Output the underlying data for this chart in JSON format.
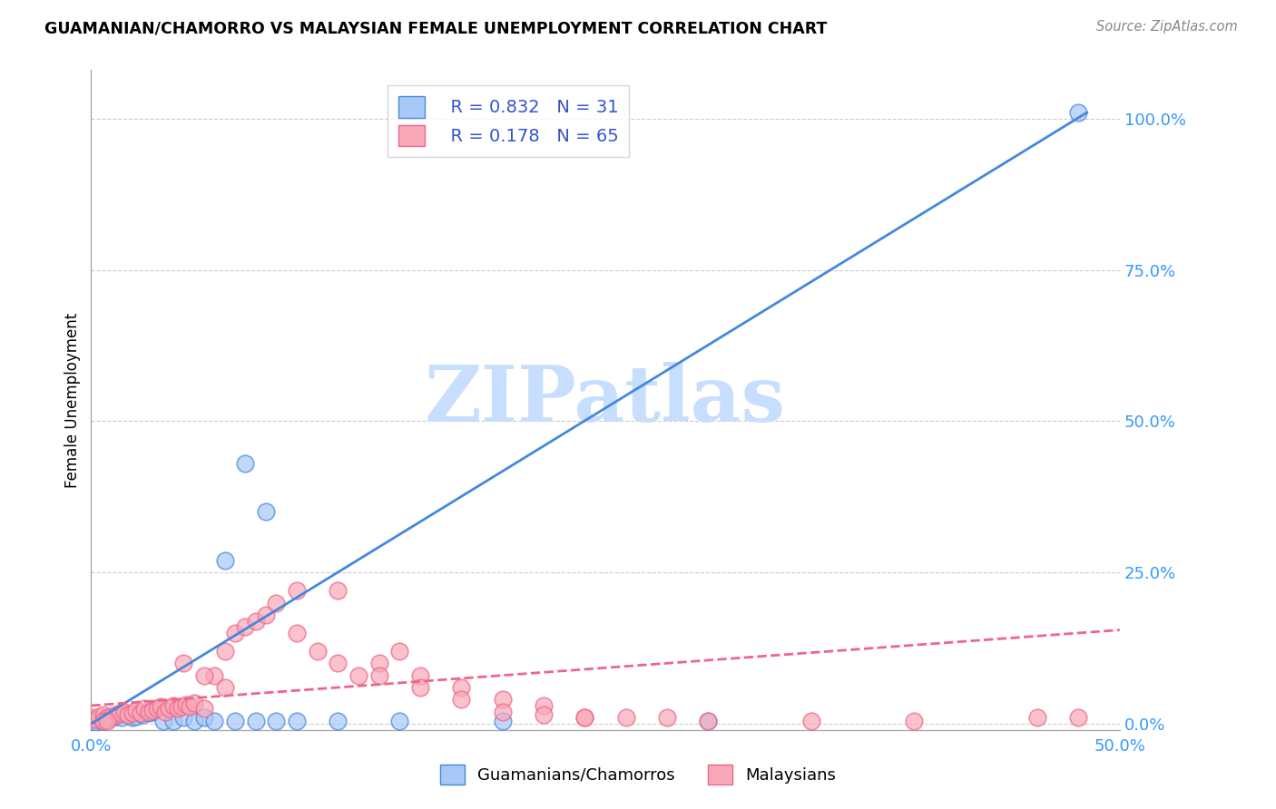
{
  "title": "GUAMANIAN/CHAMORRO VS MALAYSIAN FEMALE UNEMPLOYMENT CORRELATION CHART",
  "source": "Source: ZipAtlas.com",
  "ylabel": "Female Unemployment",
  "right_yticks": [
    "0.0%",
    "25.0%",
    "50.0%",
    "75.0%",
    "100.0%"
  ],
  "right_ytick_vals": [
    0.0,
    0.25,
    0.5,
    0.75,
    1.0
  ],
  "xlim": [
    0.0,
    0.5
  ],
  "ylim": [
    -0.01,
    1.08
  ],
  "legend_R1": "R = 0.832",
  "legend_N1": "N = 31",
  "legend_R2": "R = 0.178",
  "legend_N2": "N = 65",
  "legend_label1": "Guamanians/Chamorros",
  "legend_label2": "Malaysians",
  "color_blue": "#A8C8F8",
  "color_pink": "#F8A8B8",
  "line_blue": "#4488DD",
  "line_pink": "#EE6688",
  "watermark": "ZIPatlas",
  "watermark_color": "#C8DEFF",
  "blue_scatter_x": [
    0.0,
    0.002,
    0.005,
    0.008,
    0.01,
    0.012,
    0.015,
    0.018,
    0.02,
    0.022,
    0.025,
    0.028,
    0.03,
    0.035,
    0.04,
    0.045,
    0.05,
    0.055,
    0.06,
    0.065,
    0.07,
    0.075,
    0.08,
    0.085,
    0.09,
    0.1,
    0.12,
    0.15,
    0.2,
    0.48,
    0.3
  ],
  "blue_scatter_y": [
    0.005,
    0.003,
    0.005,
    0.008,
    0.01,
    0.012,
    0.01,
    0.015,
    0.01,
    0.012,
    0.015,
    0.018,
    0.02,
    0.005,
    0.005,
    0.01,
    0.005,
    0.01,
    0.005,
    0.27,
    0.005,
    0.43,
    0.005,
    0.35,
    0.005,
    0.005,
    0.005,
    0.005,
    0.005,
    1.01,
    0.005
  ],
  "pink_scatter_x": [
    0.0,
    0.002,
    0.004,
    0.006,
    0.008,
    0.01,
    0.012,
    0.014,
    0.016,
    0.018,
    0.02,
    0.022,
    0.024,
    0.026,
    0.028,
    0.03,
    0.032,
    0.034,
    0.036,
    0.038,
    0.04,
    0.042,
    0.044,
    0.046,
    0.048,
    0.05,
    0.055,
    0.06,
    0.065,
    0.07,
    0.075,
    0.08,
    0.085,
    0.09,
    0.1,
    0.11,
    0.12,
    0.13,
    0.14,
    0.15,
    0.16,
    0.18,
    0.2,
    0.22,
    0.24,
    0.26,
    0.28,
    0.3,
    0.35,
    0.4,
    0.045,
    0.055,
    0.065,
    0.1,
    0.12,
    0.14,
    0.16,
    0.18,
    0.2,
    0.22,
    0.24,
    0.46,
    0.48,
    0.006,
    0.008
  ],
  "pink_scatter_y": [
    0.01,
    0.008,
    0.012,
    0.015,
    0.01,
    0.012,
    0.015,
    0.018,
    0.02,
    0.015,
    0.018,
    0.022,
    0.018,
    0.025,
    0.02,
    0.022,
    0.025,
    0.028,
    0.02,
    0.025,
    0.03,
    0.025,
    0.028,
    0.032,
    0.028,
    0.035,
    0.025,
    0.08,
    0.12,
    0.15,
    0.16,
    0.17,
    0.18,
    0.2,
    0.15,
    0.12,
    0.22,
    0.08,
    0.1,
    0.12,
    0.08,
    0.06,
    0.04,
    0.03,
    0.01,
    0.01,
    0.01,
    0.005,
    0.005,
    0.005,
    0.1,
    0.08,
    0.06,
    0.22,
    0.1,
    0.08,
    0.06,
    0.04,
    0.02,
    0.015,
    0.01,
    0.01,
    0.01,
    0.005,
    0.005
  ],
  "blue_line_x": [
    0.0,
    0.484
  ],
  "blue_line_y": [
    0.0,
    1.01
  ],
  "pink_line_x": [
    0.0,
    0.5
  ],
  "pink_line_y": [
    0.03,
    0.155
  ]
}
